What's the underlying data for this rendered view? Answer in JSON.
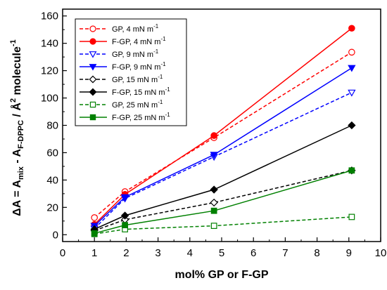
{
  "chart_data": {
    "type": "line",
    "xlabel": "mol% GP or F-GP",
    "ylabel_parts": {
      "delta_a": "ΔA = A",
      "sub_mix": "mix",
      "minus_a": " - A",
      "sub_fdppc": "F-DPPC",
      "per": " / Å",
      "sup_2": "2",
      "molecule": " molecule",
      "sup_neg1": "-1"
    },
    "xlim": [
      0,
      10
    ],
    "ylim": [
      -5,
      165
    ],
    "xticks": [
      0,
      1,
      2,
      3,
      4,
      5,
      6,
      7,
      8,
      9,
      10
    ],
    "yticks": [
      0,
      20,
      40,
      60,
      80,
      100,
      120,
      140,
      160
    ],
    "legend_position": "top-left",
    "grid": false,
    "series": [
      {
        "name": "GP, 4 mN m",
        "name_sup": "-1",
        "color": "#ff0000",
        "dash": true,
        "marker": "circle",
        "filled": false,
        "x": [
          1,
          1.96,
          4.76,
          9.09
        ],
        "y": [
          12.5,
          31.5,
          71,
          133.5
        ]
      },
      {
        "name": "F-GP, 4 mN m",
        "name_sup": "-1",
        "color": "#ff0000",
        "dash": false,
        "marker": "circle",
        "filled": true,
        "x": [
          1,
          1.96,
          4.76,
          9.09
        ],
        "y": [
          7.5,
          29.5,
          72.5,
          151
        ]
      },
      {
        "name": "GP, 9 mN m",
        "name_sup": "-1",
        "color": "#0000ff",
        "dash": true,
        "marker": "triangle-down",
        "filled": false,
        "x": [
          1,
          1.96,
          4.76,
          9.09
        ],
        "y": [
          4.5,
          26.5,
          57,
          104
        ]
      },
      {
        "name": "F-GP, 9 mN m",
        "name_sup": "-1",
        "color": "#0000ff",
        "dash": false,
        "marker": "triangle-down",
        "filled": true,
        "x": [
          1,
          1.96,
          4.76,
          9.09
        ],
        "y": [
          6.5,
          27.5,
          58.5,
          122
        ]
      },
      {
        "name": "GP, 15 mN m",
        "name_sup": "-1",
        "color": "#000000",
        "dash": true,
        "marker": "diamond",
        "filled": false,
        "x": [
          1,
          1.96,
          4.76,
          9.09
        ],
        "y": [
          3,
          11,
          23.5,
          47
        ]
      },
      {
        "name": "F-GP, 15 mN m",
        "name_sup": "-1",
        "color": "#000000",
        "dash": false,
        "marker": "diamond",
        "filled": true,
        "x": [
          1,
          1.96,
          4.76,
          9.09
        ],
        "y": [
          4,
          14,
          33,
          80
        ]
      },
      {
        "name": "GP, 25 mN m",
        "name_sup": "-1",
        "color": "#008000",
        "dash": true,
        "marker": "square",
        "filled": false,
        "x": [
          1,
          1.96,
          4.76,
          9.09
        ],
        "y": [
          0.5,
          4,
          6.5,
          13
        ]
      },
      {
        "name": "F-GP, 25 mN m",
        "name_sup": "-1",
        "color": "#008000",
        "dash": false,
        "marker": "square",
        "filled": true,
        "x": [
          1,
          1.96,
          4.76,
          9.09
        ],
        "y": [
          1,
          7,
          17.5,
          47
        ]
      }
    ]
  }
}
